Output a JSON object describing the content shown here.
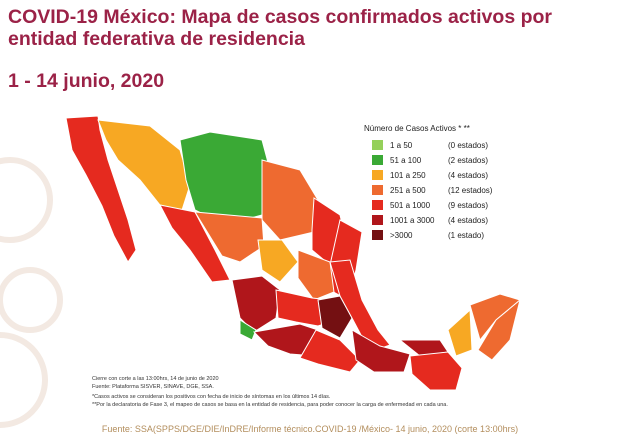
{
  "header": {
    "title_line1": "COVID-19 México: Mapa de casos confirmados activos por",
    "title_line2": "entidad federativa de residencia",
    "subtitle": "1 - 14 junio, 2020"
  },
  "legend": {
    "title": "Número de Casos Activos * **",
    "items": [
      {
        "range": "1 a 50",
        "count": "(0 estados)",
        "color": "#95d05a"
      },
      {
        "range": "51 a 100",
        "count": "(2 estados)",
        "color": "#3aa935"
      },
      {
        "range": "101 a 250",
        "count": "(4 estados)",
        "color": "#f7a823"
      },
      {
        "range": "251 a 500",
        "count": "(12 estados)",
        "color": "#ee6a30"
      },
      {
        "range": "501 a 1000",
        "count": "(9 estados)",
        "color": "#e52a1f"
      },
      {
        "range": "1001 a 3000",
        "count": "(4 estados)",
        "color": "#b0161b"
      },
      {
        "range": ">3000",
        "count": "(1 estado)",
        "color": "#741012"
      }
    ]
  },
  "notes": [
    "Cierre con corte a las 13:00hrs, 14 de junio de 2020",
    "Fuente: Plataforma SISVER, SINAVE, DGE, SSA.",
    "*Casos activos se consideran los positivos con fecha de inicio de síntomas en los últimos 14 días.",
    "**Por la declaratoria de Fase 3, el mapeo de casos se basa en la entidad de residencia, para poder conocer la carga de enfermedad en cada una."
  ],
  "footer": "Fuente: SSA(SPPS/DGE/DIE/InDRE/Informe técnico.COVID-19 /México- 14 junio, 2020 (corte 13:00hrs)"
}
